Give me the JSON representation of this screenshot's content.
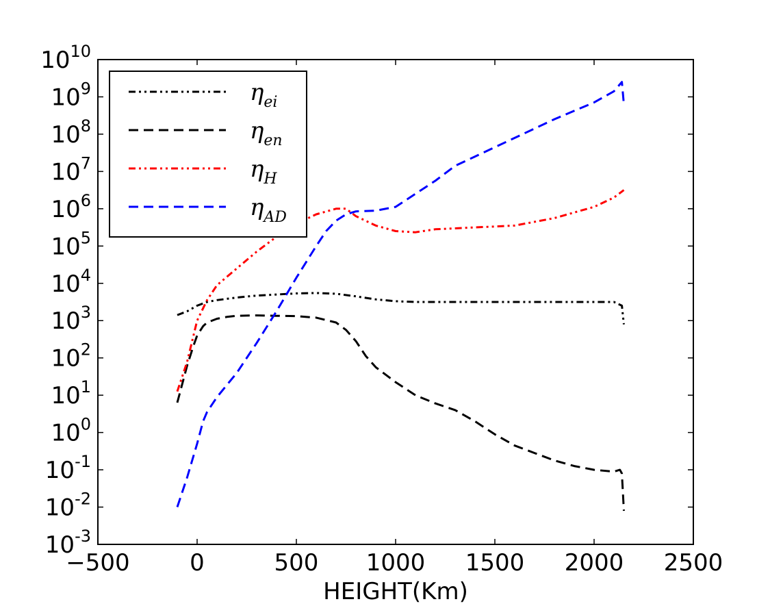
{
  "chart_data": {
    "type": "line",
    "title": "",
    "xlabel": "HEIGHT(Km)",
    "ylabel": "",
    "xlim": [
      -500,
      2500
    ],
    "ylim_log10": [
      -3,
      10
    ],
    "yscale": "log",
    "grid": false,
    "legend_position": "top-left",
    "x_ticks": [
      -500,
      0,
      500,
      1000,
      1500,
      2000,
      2500
    ],
    "x_tick_labels": [
      "−500",
      "0",
      "500",
      "1000",
      "1500",
      "2000",
      "2500"
    ],
    "y_tick_exponents": [
      -3,
      -2,
      -1,
      0,
      1,
      2,
      3,
      4,
      5,
      6,
      7,
      8,
      9,
      10
    ],
    "y_tick_labels": [
      {
        "base": "10",
        "exp": "-3"
      },
      {
        "base": "10",
        "exp": "-2"
      },
      {
        "base": "10",
        "exp": "-1"
      },
      {
        "base": "10",
        "exp": "0"
      },
      {
        "base": "10",
        "exp": "1"
      },
      {
        "base": "10",
        "exp": "2"
      },
      {
        "base": "10",
        "exp": "3"
      },
      {
        "base": "10",
        "exp": "4"
      },
      {
        "base": "10",
        "exp": "5"
      },
      {
        "base": "10",
        "exp": "6"
      },
      {
        "base": "10",
        "exp": "7"
      },
      {
        "base": "10",
        "exp": "8"
      },
      {
        "base": "10",
        "exp": "9"
      },
      {
        "base": "10",
        "exp": "10"
      }
    ],
    "series": [
      {
        "name": "eta_ei",
        "label_symbol": "η",
        "label_sub": "ei",
        "color": "#000000",
        "style": "dashdotdot",
        "x": [
          -100,
          -50,
          0,
          50,
          100,
          200,
          300,
          400,
          500,
          600,
          700,
          800,
          900,
          1000,
          1100,
          1200,
          1400,
          1600,
          1800,
          2000,
          2100,
          2140,
          2150
        ],
        "log10_y": [
          3.15,
          3.25,
          3.4,
          3.5,
          3.55,
          3.62,
          3.67,
          3.7,
          3.73,
          3.74,
          3.72,
          3.65,
          3.57,
          3.52,
          3.5,
          3.5,
          3.5,
          3.5,
          3.5,
          3.5,
          3.5,
          3.4,
          2.9
        ]
      },
      {
        "name": "eta_en",
        "label_symbol": "η",
        "label_sub": "en",
        "color": "#000000",
        "style": "dashed",
        "x": [
          -100,
          -80,
          -50,
          -20,
          0,
          30,
          50,
          100,
          150,
          200,
          300,
          400,
          500,
          600,
          700,
          750,
          800,
          850,
          900,
          1000,
          1100,
          1200,
          1300,
          1400,
          1500,
          1600,
          1700,
          1800,
          1900,
          2000,
          2100,
          2130,
          2140,
          2150
        ],
        "log10_y": [
          0.8,
          1.2,
          1.8,
          2.3,
          2.6,
          2.85,
          2.95,
          3.05,
          3.1,
          3.13,
          3.14,
          3.13,
          3.12,
          3.08,
          2.95,
          2.75,
          2.45,
          2.05,
          1.75,
          1.35,
          1.0,
          0.78,
          0.6,
          0.3,
          -0.05,
          -0.35,
          -0.55,
          -0.75,
          -0.9,
          -1.0,
          -1.05,
          -1.0,
          -1.1,
          -2.1
        ]
      },
      {
        "name": "eta_H",
        "label_symbol": "η",
        "label_sub": "H",
        "color": "#ff0000",
        "style": "dashdotdot",
        "x": [
          -100,
          -50,
          0,
          50,
          100,
          200,
          300,
          400,
          500,
          600,
          700,
          750,
          800,
          900,
          1000,
          1100,
          1200,
          1400,
          1600,
          1800,
          2000,
          2100,
          2150
        ],
        "log10_y": [
          1.1,
          1.9,
          3.0,
          3.55,
          3.95,
          4.4,
          4.85,
          5.25,
          5.6,
          5.85,
          6.0,
          6.0,
          5.8,
          5.55,
          5.4,
          5.37,
          5.45,
          5.5,
          5.55,
          5.75,
          6.05,
          6.3,
          6.5
        ]
      },
      {
        "name": "eta_AD",
        "label_symbol": "η",
        "label_sub": "AD",
        "color": "#0000ff",
        "style": "dashed",
        "x": [
          -100,
          -50,
          0,
          30,
          50,
          100,
          200,
          300,
          400,
          500,
          600,
          650,
          700,
          750,
          800,
          900,
          1000,
          1100,
          1200,
          1300,
          1400,
          1600,
          1800,
          2000,
          2100,
          2140,
          2150
        ],
        "log10_y": [
          -2.0,
          -1.2,
          -0.3,
          0.3,
          0.55,
          0.95,
          1.6,
          2.4,
          3.25,
          4.15,
          5.0,
          5.4,
          5.68,
          5.85,
          5.93,
          5.95,
          6.05,
          6.4,
          6.75,
          7.15,
          7.4,
          7.9,
          8.4,
          8.85,
          9.15,
          9.4,
          8.8
        ]
      }
    ]
  }
}
